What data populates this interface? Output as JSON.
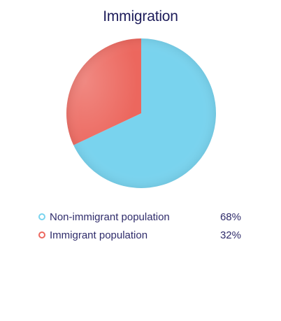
{
  "chart_data": {
    "type": "pie",
    "title": "Immigration",
    "slices": [
      {
        "label": "Non-immigrant population",
        "value": 68,
        "display": "68%",
        "color": "#79d3ee"
      },
      {
        "label": "Immigrant population",
        "value": 32,
        "display": "32%",
        "color": "#ec675e"
      }
    ],
    "legend_position": "bottom"
  }
}
